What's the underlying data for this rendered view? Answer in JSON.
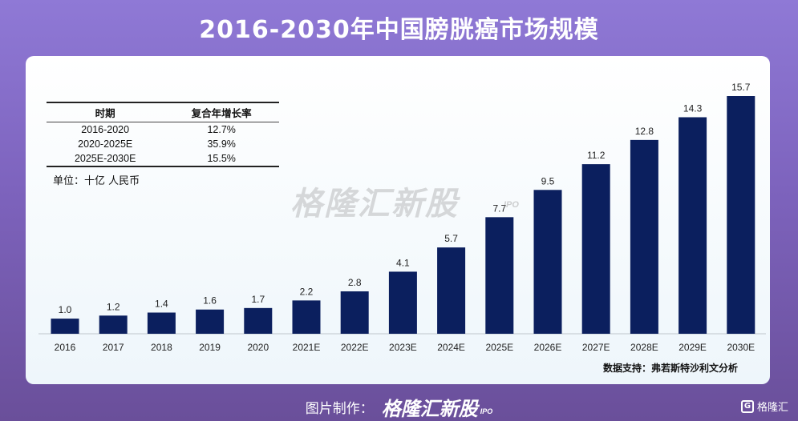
{
  "page": {
    "title": "2016-2030年中国膀胱癌市场规模",
    "unit": "单位：十亿 人民币",
    "source": "数据支持：弗若斯特沙利文分析",
    "watermark": "格隆汇新股",
    "watermark_sub": "IPO",
    "footer_label": "图片制作：",
    "footer_brand": "格隆汇新股",
    "footer_brand_sub": "IPO",
    "footer_logo_text": "格隆汇",
    "footer_logo_icon": "G"
  },
  "cagr_table": {
    "headers": [
      "时期",
      "复合年增长率"
    ],
    "rows": [
      {
        "period": "2016-2020",
        "rate": "12.7%"
      },
      {
        "period": "2020-2025E",
        "rate": "35.9%"
      },
      {
        "period": "2025E-2030E",
        "rate": "15.5%"
      }
    ]
  },
  "chart_data": {
    "type": "bar",
    "title": "2016-2030年中国膀胱癌市场规模",
    "ylabel": "单位：十亿 人民币",
    "categories": [
      "2016",
      "2017",
      "2018",
      "2019",
      "2020",
      "2021E",
      "2022E",
      "2023E",
      "2024E",
      "2025E",
      "2026E",
      "2027E",
      "2028E",
      "2029E",
      "2030E"
    ],
    "values": [
      1.0,
      1.2,
      1.4,
      1.6,
      1.7,
      2.2,
      2.8,
      4.1,
      5.7,
      7.7,
      9.5,
      11.2,
      12.8,
      14.3,
      15.7
    ],
    "value_labels": [
      "1.0",
      "1.2",
      "1.4",
      "1.6",
      "1.7",
      "2.2",
      "2.8",
      "4.1",
      "5.7",
      "7.7",
      "9.5",
      "11.2",
      "12.8",
      "14.3",
      "15.7"
    ],
    "ylim": [
      0,
      15.7
    ],
    "bar_color": "#0b1f5e",
    "grid": false,
    "legend": "none"
  }
}
